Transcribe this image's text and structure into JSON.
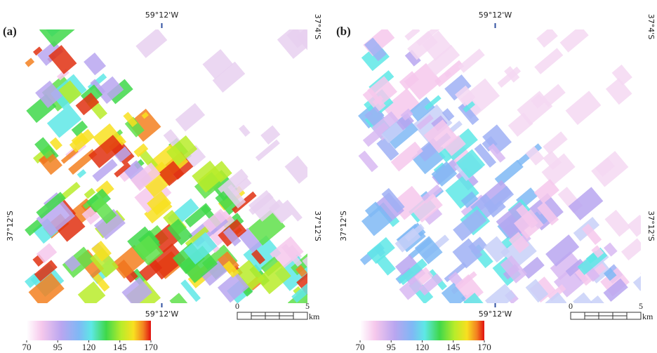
{
  "panels": [
    {
      "label": "(a)",
      "top_lon": "59°12'W",
      "right_lat_top": "37°4'S",
      "left_lat": "37°12'S",
      "right_lat": "37°12'S",
      "bottom_lon": "59°12'W",
      "scale": {
        "start": "0",
        "end": "5",
        "unit": "km"
      },
      "colorbar_ticks": [
        70,
        95,
        120,
        145,
        170
      ]
    },
    {
      "label": "(b)",
      "top_lon": "59°12'W",
      "right_lat_top": "37°4'S",
      "left_lat": "37°12'S",
      "right_lat": "37°12'S",
      "bottom_lon": "59°12'W",
      "scale": {
        "start": "0",
        "end": "5",
        "unit": "km"
      },
      "colorbar_ticks": [
        70,
        95,
        120,
        145,
        170
      ]
    }
  ]
}
